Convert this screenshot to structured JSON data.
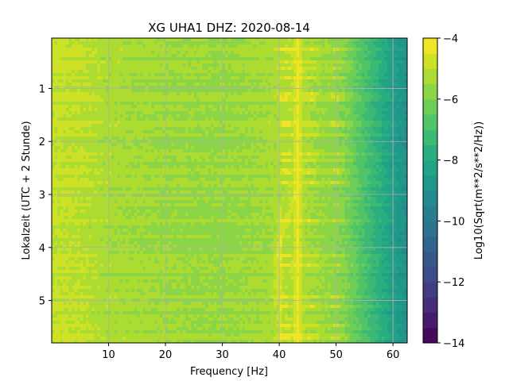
{
  "chart_data": {
    "type": "heatmap",
    "title": "XG UHA1  DHZ: 2020-08-14",
    "xlabel": "Frequency [Hz]",
    "ylabel": "Lokalzeit (UTC + 2 Stunde)",
    "xlim": [
      0,
      62.5
    ],
    "ylim": [
      5.8,
      0.05
    ],
    "x_ticks": [
      10,
      20,
      30,
      40,
      50,
      60
    ],
    "y_ticks": [
      1,
      2,
      3,
      4,
      5
    ],
    "grid": true,
    "colorbar": {
      "label": "Log10(Sqrt(m**2/s**2/Hz))",
      "range": [
        -14,
        -4
      ],
      "ticks": [
        -14,
        -12,
        -10,
        -8,
        -6,
        -4
      ],
      "colormap": "viridis",
      "levels": 20
    },
    "spectral_profile": {
      "frequency_hz": [
        0,
        5,
        10,
        20,
        30,
        38,
        42,
        46,
        50,
        52,
        54,
        56,
        58,
        60,
        62.5
      ],
      "log10_amplitude": [
        -4.9,
        -5.0,
        -5.3,
        -5.5,
        -5.6,
        -5.4,
        -5.1,
        -5.4,
        -5.7,
        -6.0,
        -6.6,
        -7.2,
        -7.8,
        -8.4,
        -9.0
      ]
    },
    "features": {
      "persistent_peak_hz": 43.3,
      "secondary_line_hz": 40.2,
      "peak_drift_hz": 39.5
    }
  }
}
